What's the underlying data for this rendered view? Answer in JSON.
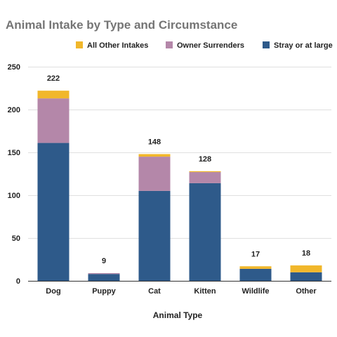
{
  "chart_data": {
    "type": "bar",
    "stacked": true,
    "title": "Animal Intake by Type and Circumstance",
    "xlabel": "Animal Type",
    "ylabel": "",
    "categories": [
      "Dog",
      "Puppy",
      "Cat",
      "Kitten",
      "Wildlife",
      "Other"
    ],
    "series": [
      {
        "name": "Stray or at large",
        "color": "#2e5a8a",
        "values": [
          161,
          8,
          105,
          114,
          14,
          10
        ]
      },
      {
        "name": "Owner Surrenders",
        "color": "#b487a9",
        "values": [
          52,
          1,
          40,
          13,
          0,
          0
        ]
      },
      {
        "name": "All Other Intakes",
        "color": "#f1b72b",
        "values": [
          9,
          0,
          3,
          1,
          3,
          8
        ]
      }
    ],
    "totals": [
      "222",
      "9",
      "148",
      "128",
      "17",
      "18"
    ],
    "legend_order": [
      "All Other Intakes",
      "Owner Surrenders",
      "Stray or at large"
    ],
    "legend_position": "top",
    "ylim": [
      0,
      250
    ],
    "yticks": [
      "0",
      "50",
      "100",
      "150",
      "200",
      "250"
    ],
    "grid": true
  }
}
